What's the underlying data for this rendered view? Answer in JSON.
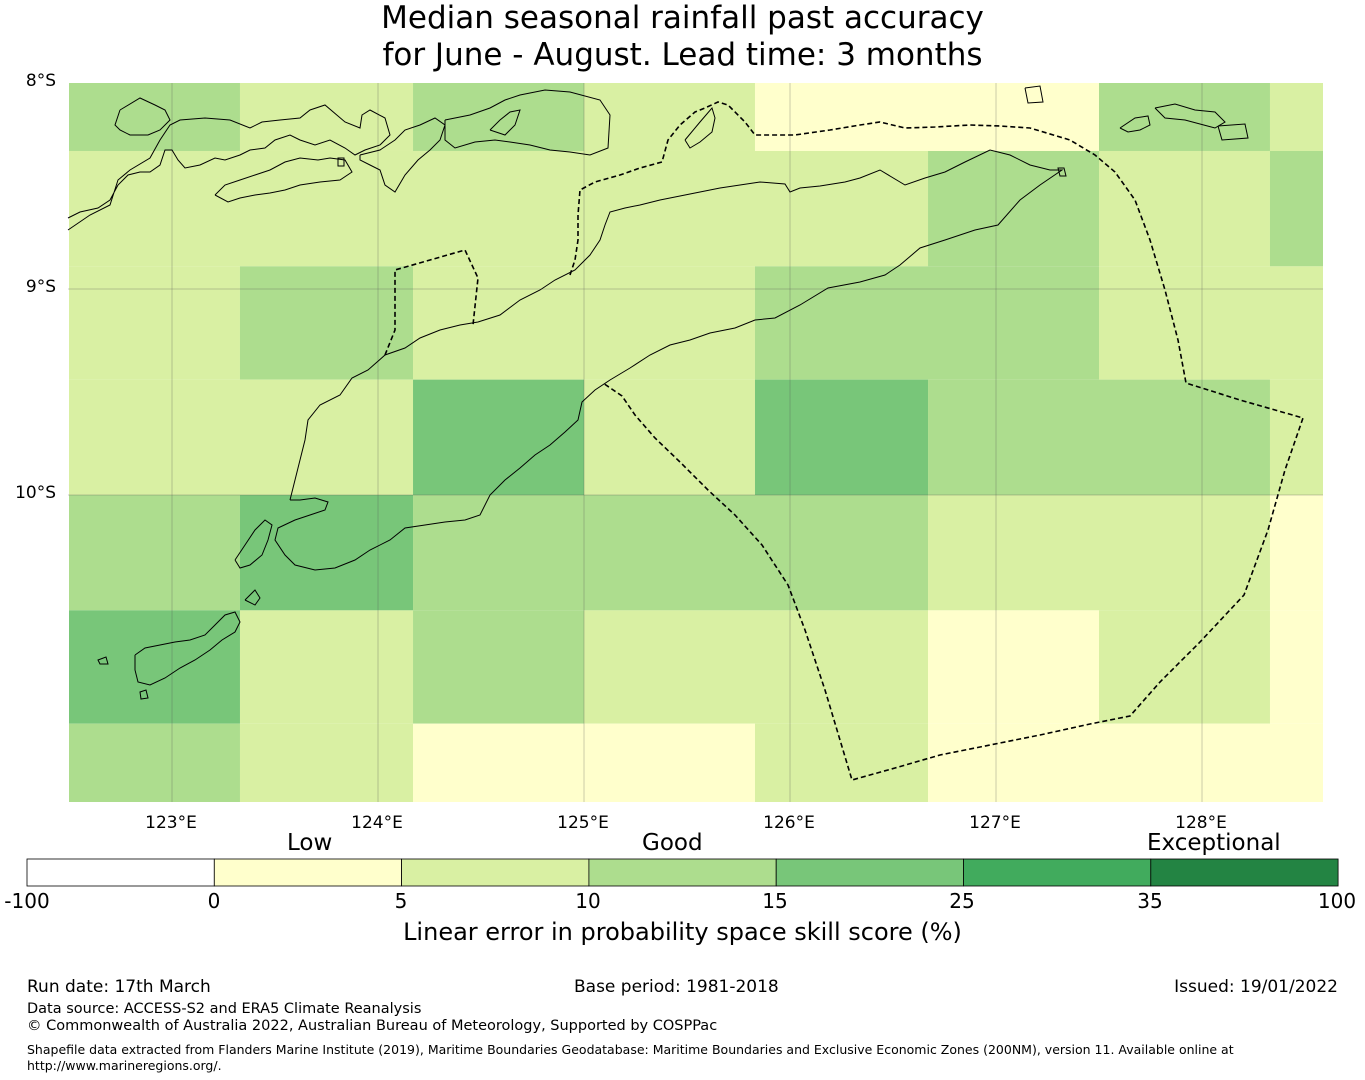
{
  "title": {
    "line1": "Median seasonal rainfall past accuracy",
    "line2": "for June - August. Lead time: 3 months"
  },
  "map": {
    "lat_labels": [
      "8°S",
      "9°S",
      "10°S"
    ],
    "lon_labels": [
      "123°E",
      "124°E",
      "125°E",
      "126°E",
      "127°E",
      "128°E"
    ],
    "lon_range": [
      122.5,
      128.6
    ],
    "lat_range": [
      -11.5,
      -8.0
    ],
    "land_color": "none",
    "boundary_style": "dashed",
    "grid": [
      {
        "lat0": -8.0,
        "lat1": -8.33,
        "cells": [
          [
            122.5,
            123.33,
            2
          ],
          [
            123.33,
            124.17,
            1
          ],
          [
            124.17,
            125.0,
            2
          ],
          [
            125.0,
            125.83,
            1
          ],
          [
            125.83,
            127.5,
            0
          ],
          [
            127.5,
            128.33,
            2
          ],
          [
            128.33,
            128.6,
            1
          ]
        ]
      },
      {
        "lat0": -8.33,
        "lat1": -8.89,
        "cells": [
          [
            122.5,
            126.67,
            1
          ],
          [
            126.67,
            127.5,
            2
          ],
          [
            127.5,
            128.33,
            1
          ],
          [
            128.33,
            128.6,
            2
          ]
        ]
      },
      {
        "lat0": -8.89,
        "lat1": -9.44,
        "cells": [
          [
            122.5,
            123.33,
            1
          ],
          [
            123.33,
            124.17,
            2
          ],
          [
            124.17,
            125.83,
            1
          ],
          [
            125.83,
            127.5,
            2
          ],
          [
            127.5,
            128.6,
            1
          ]
        ]
      },
      {
        "lat0": -9.44,
        "lat1": -10.0,
        "cells": [
          [
            122.5,
            124.17,
            1
          ],
          [
            124.17,
            125.0,
            3
          ],
          [
            125.0,
            125.83,
            1
          ],
          [
            125.83,
            126.67,
            3
          ],
          [
            126.67,
            128.33,
            2
          ],
          [
            128.33,
            128.6,
            1
          ]
        ]
      },
      {
        "lat0": -10.0,
        "lat1": -10.56,
        "cells": [
          [
            122.5,
            123.33,
            2
          ],
          [
            123.33,
            124.17,
            3
          ],
          [
            124.17,
            126.67,
            2
          ],
          [
            126.67,
            128.33,
            1
          ],
          [
            128.33,
            128.6,
            0
          ]
        ]
      },
      {
        "lat0": -10.56,
        "lat1": -11.11,
        "cells": [
          [
            122.5,
            123.33,
            3
          ],
          [
            123.33,
            124.17,
            1
          ],
          [
            124.17,
            125.0,
            2
          ],
          [
            125.0,
            126.67,
            1
          ],
          [
            126.67,
            127.5,
            0
          ],
          [
            127.5,
            128.33,
            1
          ],
          [
            128.33,
            128.6,
            0
          ]
        ]
      },
      {
        "lat0": -11.11,
        "lat1": -11.5,
        "cells": [
          [
            122.5,
            123.33,
            2
          ],
          [
            123.33,
            124.17,
            1
          ],
          [
            124.17,
            125.83,
            0
          ],
          [
            125.83,
            126.67,
            1
          ],
          [
            126.67,
            128.6,
            0
          ]
        ]
      }
    ]
  },
  "legend": {
    "category_labels": [
      "Low",
      "Good",
      "Exceptional"
    ],
    "ticks": [
      "-100",
      "0",
      "5",
      "10",
      "15",
      "25",
      "35",
      "100"
    ],
    "colors": [
      "#ffffff",
      "#ffffcc",
      "#d9f0a3",
      "#addd8e",
      "#78c679",
      "#41ab5d",
      "#238443"
    ],
    "title": "Linear error in probability space skill score (%)"
  },
  "footer": {
    "run_date": "Run date: 17th March",
    "base_period": "Base period: 1981-2018",
    "issued": "Issued: 19/01/2022",
    "data_source": "Data source: ACCESS-S2 and ERA5 Climate Reanalysis",
    "copyright": "© Commonwealth of Australia 2022, Australian Bureau of Meteorology, Supported by COSPPac",
    "shapefile_line1": "Shapefile data extracted from Flanders Marine Institute (2019), Maritime Boundaries Geodatabase: Maritime Boundaries and Exclusive Economic Zones (200NM), version 11. Available online at",
    "shapefile_line2": "http://www.marineregions.org/."
  }
}
